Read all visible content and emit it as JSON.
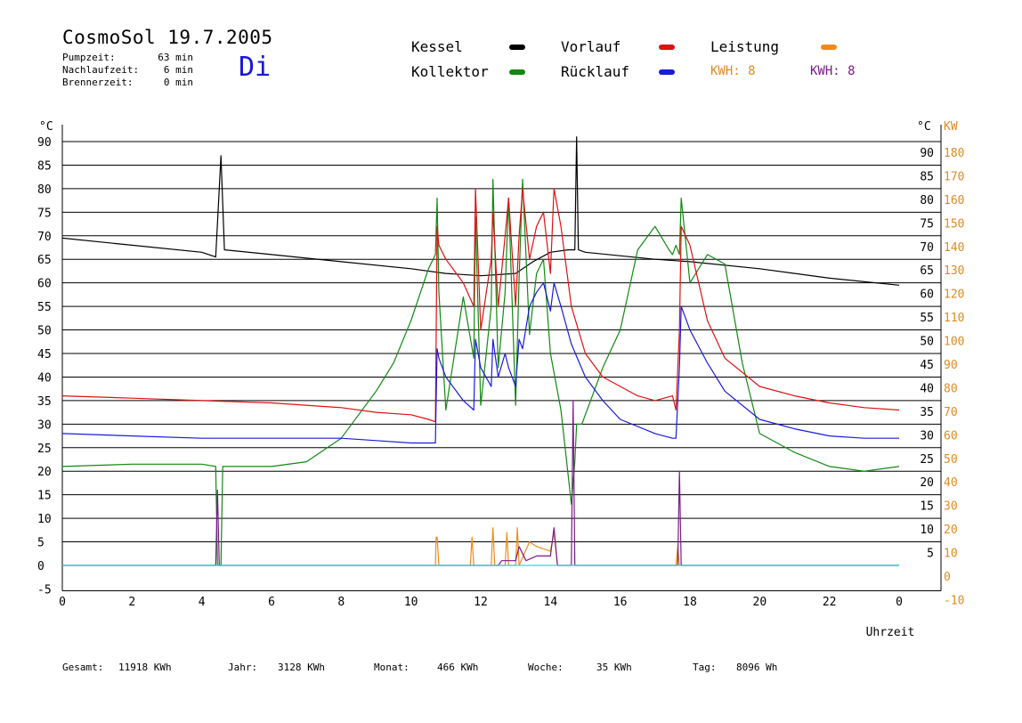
{
  "header": {
    "title": "CosmoSol 19.7.2005",
    "day": "Di",
    "stats": [
      {
        "label": "Pumpzeit:",
        "value": "63 min"
      },
      {
        "label": "Nachlaufzeit:",
        "value": "6 min"
      },
      {
        "label": "Brennerzeit:",
        "value": "0 min"
      }
    ]
  },
  "legend": {
    "items": [
      {
        "label": "Kessel",
        "color": "#000000"
      },
      {
        "label": "Vorlauf",
        "color": "#dd1111"
      },
      {
        "label": "Leistung",
        "color": "#f08a1a"
      },
      {
        "label": "Kollektor",
        "color": "#118811"
      },
      {
        "label": "Rücklauf",
        "color": "#1a1add"
      }
    ],
    "kwh_orange": "KWH: 8",
    "kwh_purple": "KWH: 8"
  },
  "footer": {
    "gesamt_label": "Gesamt:",
    "gesamt_value": "11918 KWh",
    "jahr_label": "Jahr:",
    "jahr_value": "3128 KWh",
    "monat_label": "Monat:",
    "monat_value": "466 KWh",
    "woche_label": "Woche:",
    "woche_value": "35 KWh",
    "tag_label": "Tag:",
    "tag_value": "8096 Wh"
  },
  "chart_data": {
    "type": "line",
    "xlabel": "Uhrzeit",
    "ylabel_left": "°C",
    "ylabel_right_temp": "°C",
    "ylabel_right_power": "KW",
    "xlim": [
      0,
      24
    ],
    "ylim": [
      -5,
      95
    ],
    "grid": true,
    "x_ticks": [
      "0",
      "2",
      "4",
      "6",
      "8",
      "10",
      "12",
      "14",
      "16",
      "18",
      "20",
      "22",
      "0"
    ],
    "y_ticks_left": [
      "-5",
      "0",
      "5",
      "10",
      "15",
      "20",
      "25",
      "30",
      "35",
      "40",
      "45",
      "50",
      "55",
      "60",
      "65",
      "70",
      "75",
      "80",
      "85",
      "90"
    ],
    "y_ticks_right_temp": [
      "5",
      "10",
      "15",
      "20",
      "25",
      "30",
      "35",
      "40",
      "45",
      "50",
      "55",
      "60",
      "65",
      "70",
      "75",
      "80",
      "85",
      "90"
    ],
    "y_ticks_right_power": [
      "-10",
      "0",
      "10",
      "20",
      "30",
      "40",
      "50",
      "60",
      "70",
      "80",
      "90",
      "100",
      "110",
      "120",
      "130",
      "140",
      "150",
      "160",
      "170",
      "180"
    ],
    "series": [
      {
        "name": "Kessel",
        "color": "#000000",
        "x": [
          0,
          2,
          4,
          4.4,
          4.5,
          4.55,
          4.65,
          6,
          8,
          10,
          11,
          12,
          13,
          13.5,
          14,
          14.5,
          14.7,
          14.75,
          14.8,
          15,
          17,
          18,
          20,
          22,
          24
        ],
        "y": [
          69.5,
          68,
          66.5,
          65.5,
          80,
          87,
          67,
          66,
          64.5,
          63,
          62,
          61.5,
          62,
          64.5,
          66.5,
          67,
          67,
          91,
          67,
          66.5,
          65,
          64.5,
          63,
          61,
          59.5
        ]
      },
      {
        "name": "Kollektor",
        "color": "#118811",
        "x": [
          0,
          2,
          4,
          4.4,
          4.45,
          4.55,
          4.6,
          6,
          7,
          8,
          9,
          9.5,
          10,
          10.5,
          10.7,
          10.75,
          10.8,
          11,
          11.5,
          11.8,
          11.85,
          12,
          12.3,
          12.35,
          12.5,
          12.7,
          12.8,
          13,
          13.1,
          13.2,
          13.4,
          13.6,
          13.8,
          14,
          14.3,
          14.6,
          14.7,
          14.75,
          14.9,
          15.5,
          16,
          16.5,
          17,
          17.4,
          17.5,
          17.6,
          17.7,
          17.75,
          18,
          18.5,
          19,
          19.5,
          20,
          21,
          22,
          23,
          24
        ],
        "y": [
          21,
          21.5,
          21.5,
          21,
          0,
          0,
          21,
          21,
          22,
          27,
          37,
          43,
          52,
          63,
          66,
          78,
          58,
          33,
          57,
          44,
          74,
          34,
          55,
          82,
          42,
          58,
          78,
          34,
          61,
          82,
          49,
          62,
          65,
          45,
          33,
          13,
          22,
          30,
          30,
          42,
          50,
          67,
          72,
          67,
          66,
          68,
          66,
          78,
          60,
          66,
          64,
          43,
          28,
          24,
          21,
          20,
          21
        ]
      },
      {
        "name": "Vorlauf",
        "color": "#dd1111",
        "x": [
          0,
          2,
          4,
          6,
          8,
          9,
          10,
          10.5,
          10.7,
          10.75,
          10.8,
          11,
          11.5,
          11.8,
          11.85,
          12,
          12.3,
          12.35,
          12.5,
          12.7,
          12.8,
          13,
          13.1,
          13.2,
          13.4,
          13.6,
          13.8,
          14,
          14.1,
          14.3,
          14.6,
          15,
          15.5,
          16,
          16.5,
          17,
          17.5,
          17.6,
          17.7,
          17.75,
          18,
          18.5,
          19,
          20,
          21,
          22,
          23,
          24
        ],
        "y": [
          36,
          35.5,
          35,
          34.5,
          33.5,
          32.5,
          32,
          31,
          30.5,
          72,
          68,
          65,
          60,
          55,
          80,
          50,
          65,
          75,
          55,
          70,
          78,
          55,
          70,
          80,
          65,
          72,
          75,
          62,
          80,
          72,
          55,
          45,
          40,
          38,
          36,
          35,
          36,
          33,
          50,
          72,
          68,
          52,
          44,
          38,
          36,
          34.5,
          33.5,
          33
        ]
      },
      {
        "name": "Rücklauf",
        "color": "#1a1add",
        "x": [
          0,
          2,
          4,
          6,
          8,
          9,
          10,
          10.5,
          10.7,
          10.75,
          10.8,
          11,
          11.5,
          11.8,
          11.85,
          12,
          12.3,
          12.35,
          12.5,
          12.7,
          12.8,
          13,
          13.1,
          13.2,
          13.4,
          13.6,
          13.8,
          14,
          14.1,
          14.3,
          14.6,
          15,
          15.5,
          16,
          17,
          17.5,
          17.6,
          17.7,
          17.75,
          18,
          18.5,
          19,
          20,
          21,
          22,
          23,
          24
        ],
        "y": [
          28,
          27.5,
          27,
          27,
          27,
          26.5,
          26,
          26,
          26,
          46,
          44,
          40,
          35,
          33,
          48,
          42,
          38,
          48,
          40,
          45,
          42,
          38,
          48,
          46,
          55,
          58,
          60,
          54,
          60,
          55,
          47,
          40,
          35,
          31,
          28,
          27,
          27,
          42,
          55,
          50,
          43,
          37,
          31,
          29,
          27.5,
          27,
          27
        ]
      },
      {
        "name": "Leistung",
        "color": "#f08a1a",
        "x": [
          0,
          10.7,
          10.72,
          10.75,
          10.8,
          11.7,
          11.75,
          11.8,
          12.3,
          12.35,
          12.4,
          12.7,
          12.75,
          12.8,
          13,
          13.05,
          13.1,
          13.4,
          13.6,
          14,
          14.1,
          14.2,
          17.6,
          17.65,
          17.7,
          24
        ],
        "y": [
          0,
          0,
          6,
          6,
          0,
          0,
          6,
          0,
          0,
          8,
          0,
          0,
          7,
          0,
          0,
          8,
          0,
          5,
          4,
          3,
          7,
          0,
          0,
          4,
          0,
          0
        ]
      },
      {
        "name": "Leistung KWH",
        "color": "#7a1a8a",
        "x": [
          0,
          4.4,
          4.45,
          4.5,
          4.6,
          12.5,
          12.6,
          13,
          13.1,
          13.3,
          13.6,
          14,
          14.1,
          14.2,
          14.6,
          14.65,
          14.7,
          14.75,
          17.65,
          17.7,
          17.75,
          24
        ],
        "y": [
          0,
          0,
          16,
          0,
          0,
          0,
          1,
          1,
          4,
          1,
          2,
          2,
          8,
          0,
          0,
          35,
          0,
          0,
          0,
          20,
          0,
          0
        ]
      },
      {
        "name": "Null",
        "color": "#22dddd",
        "x": [
          0,
          24
        ],
        "y": [
          0,
          0
        ]
      }
    ]
  }
}
